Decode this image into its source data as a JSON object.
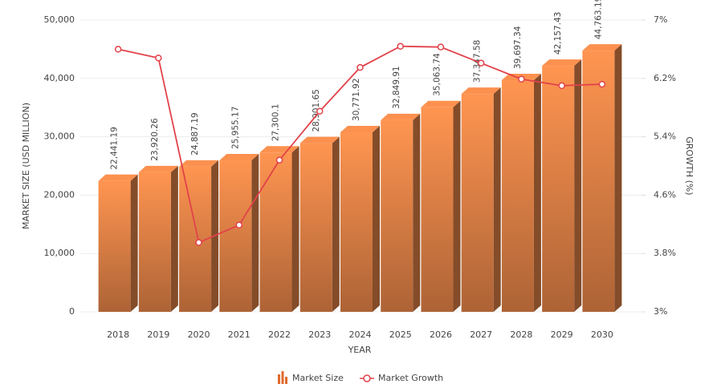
{
  "chart_data": {
    "type": "bar-line",
    "x_label": "YEAR",
    "y_label": "MARKET SIZE (USD MILLION)",
    "y2_label": "GROWTH (%)",
    "categories": [
      "2018",
      "2019",
      "2020",
      "2021",
      "2022",
      "2023",
      "2024",
      "2025",
      "2026",
      "2027",
      "2028",
      "2029",
      "2030"
    ],
    "series": [
      {
        "name": "Market Size",
        "type": "bar",
        "color": "#f08a4b",
        "values": [
          22441.19,
          23920.26,
          24887.19,
          25955.17,
          27300.1,
          28901.65,
          30771.92,
          32849.91,
          35063.74,
          37347.58,
          39697.34,
          42157.43,
          44763.19
        ],
        "value_labels": [
          "22,441.19",
          "23,920.26",
          "24,887.19",
          "25,955.17",
          "27,300.1",
          "28,901.65",
          "30,771.92",
          "32,849.91",
          "35,063.74",
          "37,347.58",
          "39,697.34",
          "42,157.43",
          "44,763.19"
        ]
      },
      {
        "name": "Market Growth",
        "type": "line",
        "axis": "y2",
        "color": "#e2424a",
        "values": [
          6.6,
          6.48,
          3.95,
          4.19,
          5.08,
          5.75,
          6.35,
          6.64,
          6.63,
          6.41,
          6.19,
          6.1,
          6.12
        ]
      }
    ],
    "ylim": [
      0,
      50000
    ],
    "yticks": [
      0,
      {
        "value": 10000,
        "label": "10,000"
      },
      {
        "value": 20000,
        "label": "20,000"
      },
      {
        "value": 30000,
        "label": "30,000"
      },
      {
        "value": 40000,
        "label": "40,000"
      },
      {
        "value": 50000,
        "label": "50,000"
      }
    ],
    "y2lim": [
      3,
      7
    ],
    "y2ticks": [
      {
        "value": 3,
        "label": "3%"
      },
      {
        "value": 3.8,
        "label": "3.8%"
      },
      {
        "value": 4.6,
        "label": "4.6%"
      },
      {
        "value": 5.4,
        "label": "5.4%"
      },
      {
        "value": 6.2,
        "label": "6.2%"
      },
      {
        "value": 7,
        "label": "7%"
      }
    ],
    "grid": true
  }
}
